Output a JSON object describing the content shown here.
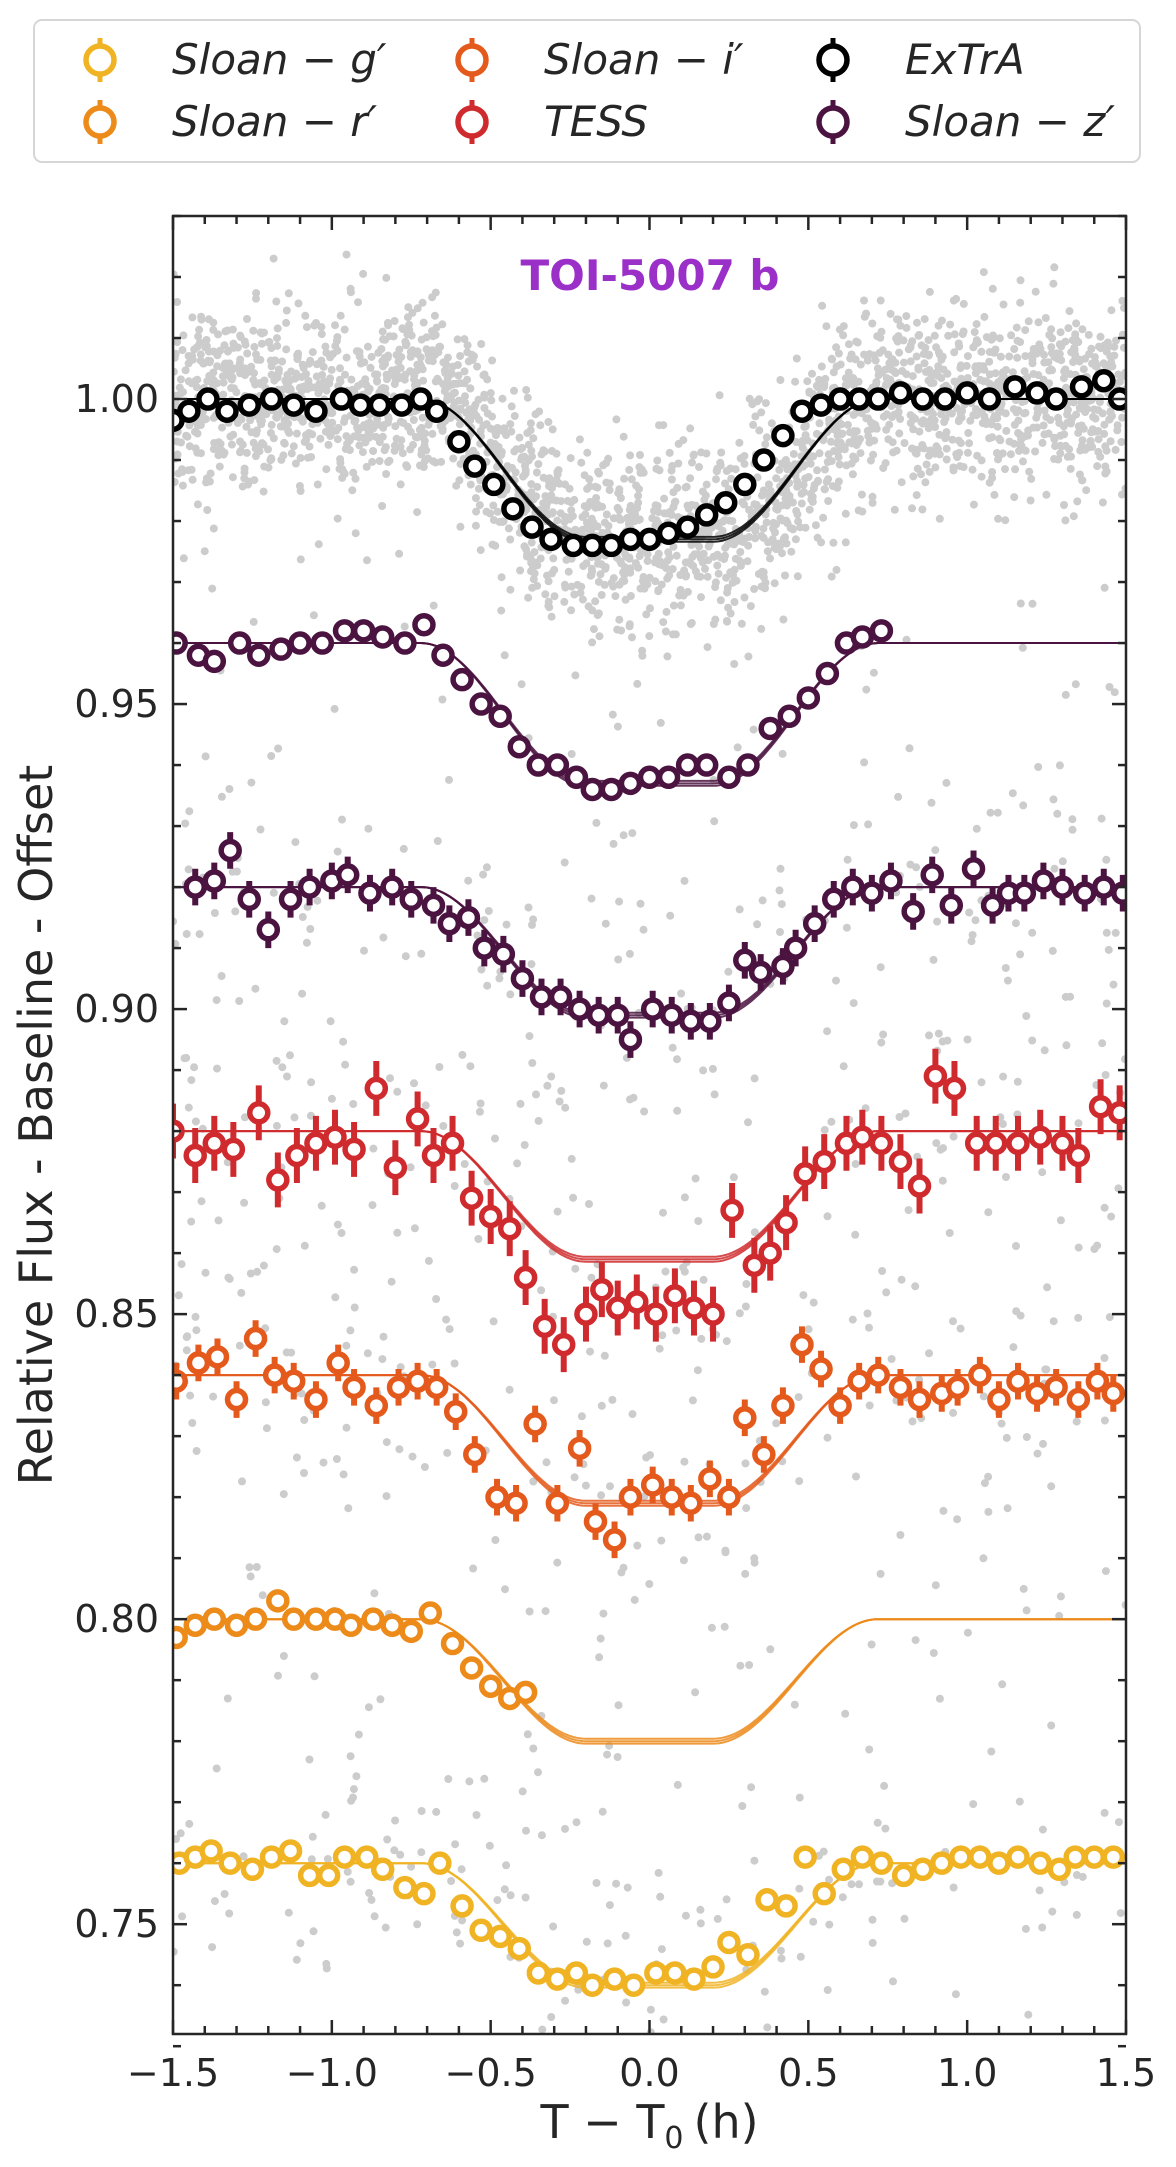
{
  "chart_data": {
    "type": "scatter",
    "annotation": "TOI-5007 b",
    "xlabel": "T − T",
    "xlabel_sub": "0",
    "xlabel_unit": "(h)",
    "ylabel": "Relative Flux - Baseline - Offset",
    "xlim": [
      -1.5,
      1.5
    ],
    "ylim": [
      0.732,
      1.03
    ],
    "x_ticks": [
      -1.5,
      -1.0,
      -0.5,
      0.0,
      0.5,
      1.0,
      1.5
    ],
    "x_tick_labels": [
      "−1.5",
      "−1.0",
      "−0.5",
      "0.0",
      "0.5",
      "1.0",
      "1.5"
    ],
    "y_ticks": [
      0.75,
      0.8,
      0.85,
      0.9,
      0.95,
      1.0
    ],
    "y_tick_labels": [
      "0.75",
      "0.80",
      "0.85",
      "0.90",
      "0.95",
      "1.00"
    ],
    "grid": false,
    "legend_position": "top, outside plot, 3 columns",
    "legend": [
      {
        "label": "Sloan − g′",
        "color": "#f0b323"
      },
      {
        "label": "Sloan − r′",
        "color": "#ec8a1a"
      },
      {
        "label": "Sloan − i′",
        "color": "#e45a1c"
      },
      {
        "label": "TESS",
        "color": "#cf2a2d"
      },
      {
        "label": "ExTrA",
        "color": "#000000"
      },
      {
        "label": "Sloan − z′",
        "color": "#4a1340"
      }
    ],
    "background_points_color": "#cccccc",
    "series": [
      {
        "legend_index": 4,
        "color": "#000000",
        "baseline": 1.0,
        "depth": 0.023,
        "model_xlim": [
          -1.5,
          1.5
        ],
        "x": [
          -1.5,
          -1.45,
          -1.39,
          -1.33,
          -1.26,
          -1.19,
          -1.12,
          -1.05,
          -0.97,
          -0.91,
          -0.85,
          -0.78,
          -0.72,
          -0.67,
          -0.6,
          -0.55,
          -0.49,
          -0.43,
          -0.37,
          -0.31,
          -0.24,
          -0.18,
          -0.12,
          -0.06,
          0.0,
          0.06,
          0.12,
          0.18,
          0.24,
          0.3,
          0.36,
          0.42,
          0.48,
          0.54,
          0.6,
          0.66,
          0.72,
          0.79,
          0.86,
          0.93,
          1.0,
          1.07,
          1.15,
          1.22,
          1.28,
          1.36,
          1.43,
          1.48
        ],
        "y": [
          0.9965,
          0.998,
          1.0,
          0.998,
          0.999,
          1.0,
          0.999,
          0.998,
          1.0,
          0.999,
          0.999,
          0.999,
          1.0,
          0.998,
          0.993,
          0.989,
          0.986,
          0.982,
          0.979,
          0.977,
          0.976,
          0.976,
          0.976,
          0.977,
          0.977,
          0.978,
          0.979,
          0.981,
          0.983,
          0.986,
          0.99,
          0.994,
          0.998,
          0.999,
          1.0,
          1.0,
          1.0,
          1.001,
          1.0,
          1.0,
          1.001,
          1.0,
          1.002,
          1.001,
          1.0,
          1.002,
          1.003,
          1.0
        ]
      },
      {
        "legend_index": 5,
        "color": "#4a1340",
        "baseline": 0.96,
        "depth": 0.023,
        "model_xlim": [
          -1.5,
          1.5
        ],
        "x": [
          -1.49,
          -1.42,
          -1.37,
          -1.29,
          -1.23,
          -1.16,
          -1.1,
          -1.03,
          -0.96,
          -0.9,
          -0.84,
          -0.77,
          -0.71,
          -0.65,
          -0.59,
          -0.53,
          -0.47,
          -0.41,
          -0.35,
          -0.29,
          -0.23,
          -0.18,
          -0.12,
          -0.06,
          0.0,
          0.06,
          0.12,
          0.18,
          0.25,
          0.31,
          0.38,
          0.44,
          0.5,
          0.56,
          0.62,
          0.67,
          0.73
        ],
        "y": [
          0.96,
          0.958,
          0.957,
          0.96,
          0.958,
          0.959,
          0.96,
          0.96,
          0.962,
          0.962,
          0.961,
          0.96,
          0.963,
          0.958,
          0.954,
          0.95,
          0.948,
          0.943,
          0.94,
          0.94,
          0.938,
          0.936,
          0.936,
          0.937,
          0.938,
          0.938,
          0.94,
          0.94,
          0.938,
          0.94,
          0.946,
          0.948,
          0.951,
          0.955,
          0.96,
          0.961,
          0.962
        ]
      },
      {
        "legend_index": 5,
        "color": "#4a1340",
        "baseline": 0.92,
        "depth": 0.021,
        "model_xlim": [
          -1.5,
          1.5
        ],
        "x": [
          -1.43,
          -1.37,
          -1.32,
          -1.26,
          -1.2,
          -1.13,
          -1.07,
          -1.0,
          -0.95,
          -0.88,
          -0.81,
          -0.75,
          -0.68,
          -0.63,
          -0.57,
          -0.52,
          -0.46,
          -0.4,
          -0.34,
          -0.28,
          -0.22,
          -0.16,
          -0.1,
          -0.06,
          0.01,
          0.07,
          0.13,
          0.19,
          0.25,
          0.3,
          0.35,
          0.42,
          0.46,
          0.52,
          0.58,
          0.64,
          0.7,
          0.76,
          0.83,
          0.89,
          0.95,
          1.02,
          1.08,
          1.13,
          1.18,
          1.24,
          1.3,
          1.37,
          1.43,
          1.49
        ],
        "y": [
          0.92,
          0.921,
          0.926,
          0.918,
          0.913,
          0.918,
          0.92,
          0.921,
          0.922,
          0.919,
          0.92,
          0.918,
          0.917,
          0.914,
          0.915,
          0.91,
          0.909,
          0.905,
          0.902,
          0.902,
          0.9,
          0.899,
          0.899,
          0.895,
          0.9,
          0.899,
          0.898,
          0.898,
          0.901,
          0.908,
          0.906,
          0.907,
          0.91,
          0.914,
          0.918,
          0.92,
          0.919,
          0.921,
          0.916,
          0.922,
          0.917,
          0.923,
          0.917,
          0.919,
          0.919,
          0.921,
          0.92,
          0.919,
          0.92,
          0.919
        ]
      },
      {
        "legend_index": 3,
        "color": "#cf2a2d",
        "baseline": 0.88,
        "depth": 0.021,
        "model_xlim": [
          -1.5,
          1.5
        ],
        "x": [
          -1.5,
          -1.43,
          -1.37,
          -1.31,
          -1.23,
          -1.17,
          -1.11,
          -1.05,
          -0.99,
          -0.93,
          -0.86,
          -0.8,
          -0.73,
          -0.68,
          -0.62,
          -0.56,
          -0.5,
          -0.44,
          -0.39,
          -0.33,
          -0.27,
          -0.2,
          -0.15,
          -0.1,
          -0.04,
          0.02,
          0.08,
          0.14,
          0.2,
          0.26,
          0.33,
          0.38,
          0.43,
          0.49,
          0.55,
          0.62,
          0.67,
          0.73,
          0.79,
          0.85,
          0.9,
          0.96,
          1.03,
          1.09,
          1.16,
          1.23,
          1.3,
          1.35,
          1.42,
          1.48
        ],
        "y": [
          0.88,
          0.876,
          0.878,
          0.877,
          0.883,
          0.872,
          0.876,
          0.878,
          0.879,
          0.877,
          0.887,
          0.874,
          0.882,
          0.876,
          0.878,
          0.869,
          0.866,
          0.864,
          0.856,
          0.848,
          0.845,
          0.85,
          0.854,
          0.851,
          0.852,
          0.85,
          0.853,
          0.851,
          0.85,
          0.867,
          0.858,
          0.86,
          0.865,
          0.873,
          0.875,
          0.878,
          0.879,
          0.878,
          0.875,
          0.871,
          0.889,
          0.887,
          0.878,
          0.878,
          0.878,
          0.879,
          0.878,
          0.876,
          0.884,
          0.883
        ]
      },
      {
        "legend_index": 2,
        "color": "#e45a1c",
        "baseline": 0.84,
        "depth": 0.021,
        "model_xlim": [
          -1.5,
          1.5
        ],
        "x": [
          -1.49,
          -1.42,
          -1.36,
          -1.3,
          -1.24,
          -1.18,
          -1.12,
          -1.05,
          -0.98,
          -0.93,
          -0.86,
          -0.79,
          -0.73,
          -0.67,
          -0.61,
          -0.55,
          -0.48,
          -0.42,
          -0.36,
          -0.29,
          -0.22,
          -0.17,
          -0.11,
          -0.06,
          0.01,
          0.07,
          0.13,
          0.19,
          0.25,
          0.3,
          0.36,
          0.42,
          0.48,
          0.54,
          0.6,
          0.66,
          0.72,
          0.79,
          0.85,
          0.92,
          0.97,
          1.04,
          1.1,
          1.16,
          1.22,
          1.28,
          1.35,
          1.41,
          1.46
        ],
        "y": [
          0.839,
          0.842,
          0.843,
          0.836,
          0.846,
          0.84,
          0.839,
          0.836,
          0.842,
          0.838,
          0.835,
          0.838,
          0.839,
          0.838,
          0.834,
          0.827,
          0.82,
          0.819,
          0.832,
          0.819,
          0.828,
          0.816,
          0.813,
          0.82,
          0.822,
          0.82,
          0.819,
          0.823,
          0.82,
          0.833,
          0.827,
          0.835,
          0.845,
          0.841,
          0.835,
          0.839,
          0.84,
          0.838,
          0.836,
          0.837,
          0.838,
          0.84,
          0.836,
          0.839,
          0.837,
          0.838,
          0.836,
          0.839,
          0.837
        ]
      },
      {
        "legend_index": 1,
        "color": "#ec8a1a",
        "baseline": 0.8,
        "depth": 0.02,
        "model_xlim": [
          -1.5,
          1.5
        ],
        "x": [
          -1.49,
          -1.43,
          -1.37,
          -1.3,
          -1.24,
          -1.17,
          -1.12,
          -1.05,
          -0.99,
          -0.94,
          -0.87,
          -0.81,
          -0.75,
          -0.69,
          -0.62,
          -0.56,
          -0.5,
          -0.44,
          -0.39
        ],
        "y": [
          0.797,
          0.799,
          0.8,
          0.799,
          0.8,
          0.803,
          0.8,
          0.8,
          0.8,
          0.799,
          0.8,
          0.799,
          0.798,
          0.801,
          0.796,
          0.792,
          0.789,
          0.787,
          0.788
        ]
      },
      {
        "legend_index": 0,
        "color": "#f0b323",
        "baseline": 0.76,
        "depth": 0.02,
        "model_xlim": [
          -1.5,
          1.5
        ],
        "x": [
          -1.48,
          -1.43,
          -1.38,
          -1.32,
          -1.25,
          -1.19,
          -1.13,
          -1.07,
          -1.01,
          -0.96,
          -0.89,
          -0.84,
          -0.77,
          -0.71,
          -0.66,
          -0.59,
          -0.53,
          -0.47,
          -0.41,
          -0.35,
          -0.29,
          -0.23,
          -0.18,
          -0.11,
          -0.05,
          0.02,
          0.08,
          0.14,
          0.2,
          0.25,
          0.31,
          0.37,
          0.43,
          0.49,
          0.55,
          0.61,
          0.67,
          0.73,
          0.8,
          0.86,
          0.92,
          0.98,
          1.04,
          1.1,
          1.16,
          1.23,
          1.29,
          1.34,
          1.4,
          1.46
        ],
        "y": [
          0.76,
          0.761,
          0.762,
          0.76,
          0.759,
          0.761,
          0.762,
          0.758,
          0.758,
          0.761,
          0.761,
          0.759,
          0.756,
          0.755,
          0.76,
          0.753,
          0.749,
          0.748,
          0.746,
          0.742,
          0.741,
          0.742,
          0.74,
          0.741,
          0.74,
          0.742,
          0.742,
          0.741,
          0.743,
          0.747,
          0.745,
          0.754,
          0.753,
          0.761,
          0.755,
          0.759,
          0.761,
          0.76,
          0.758,
          0.759,
          0.76,
          0.761,
          0.761,
          0.76,
          0.761,
          0.76,
          0.759,
          0.761,
          0.761,
          0.761
        ]
      }
    ]
  }
}
